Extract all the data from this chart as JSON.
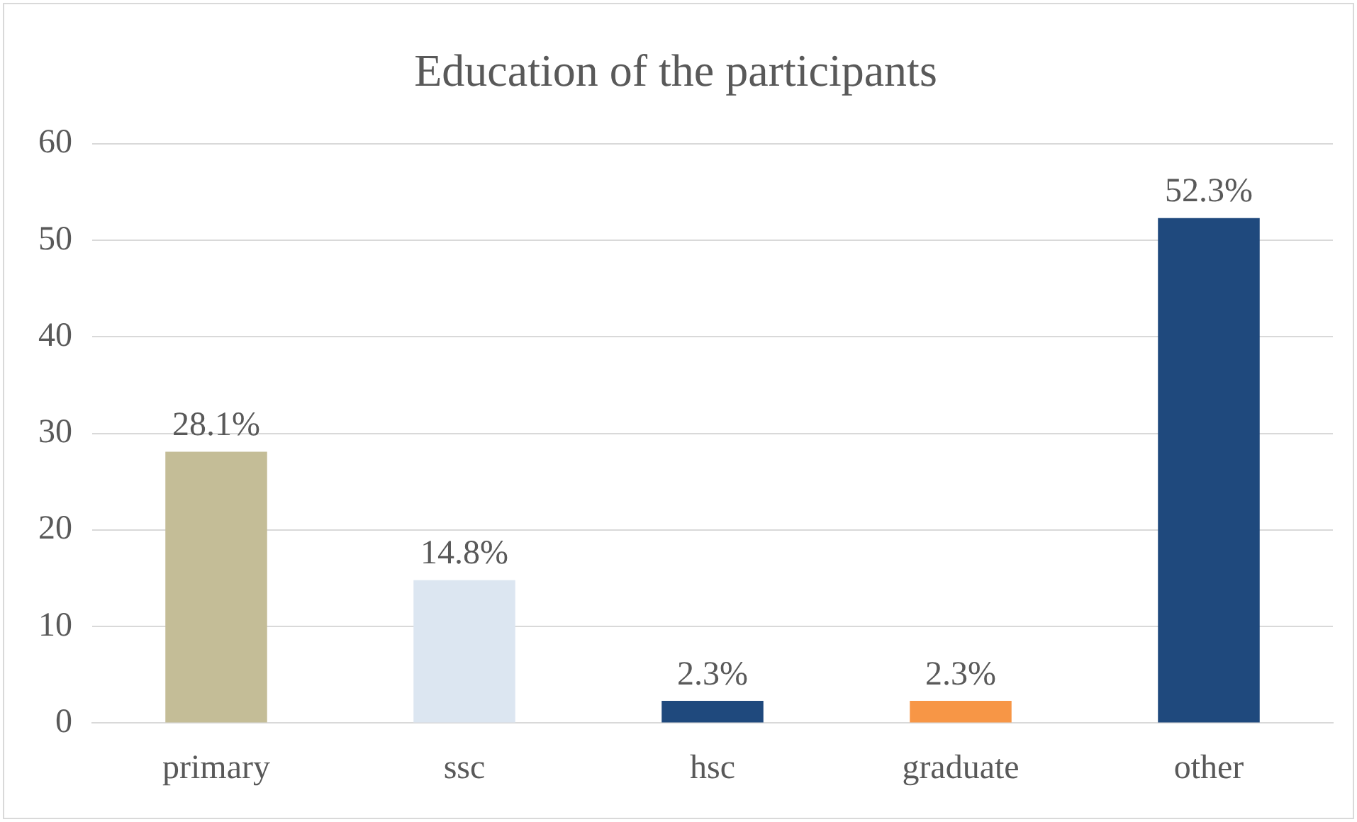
{
  "chart_data": {
    "type": "bar",
    "title": "Education of the participants",
    "categories": [
      "primary",
      "ssc",
      "hsc",
      "graduate",
      "other"
    ],
    "values": [
      28.1,
      14.8,
      2.3,
      2.3,
      52.3
    ],
    "colors": [
      "#c4bd97",
      "#dce6f1",
      "#1f497d",
      "#f79646",
      "#1f497d"
    ],
    "value_labels": [
      "28.1%",
      "14.8%",
      "2.3%",
      "2.3%",
      "52.3%"
    ],
    "ylim": [
      0,
      60
    ],
    "yticks": [
      0,
      10,
      20,
      30,
      40,
      50,
      60
    ],
    "grid": "y"
  }
}
